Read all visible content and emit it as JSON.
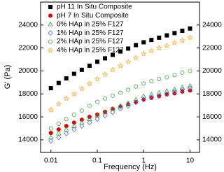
{
  "chart_data": {
    "type": "scatter",
    "xlabel": "Frequency (Hz)",
    "ylabel": "G' (Pa)",
    "xscale": "log",
    "x": [
      0.01,
      0.0147,
      0.0215,
      0.0316,
      0.0464,
      0.0681,
      0.1,
      0.147,
      0.215,
      0.316,
      0.464,
      0.681,
      1,
      1.47,
      2.15,
      3.16,
      4.64,
      6.81,
      10
    ],
    "series": [
      {
        "name": "pH 11 In Situ Composite",
        "color": "#000000",
        "marker": "square",
        "filled": true,
        "values": [
          18500,
          18950,
          19350,
          19750,
          20100,
          20450,
          20800,
          21100,
          21400,
          21700,
          21950,
          22250,
          22500,
          22700,
          22900,
          23100,
          23300,
          23500,
          23700
        ]
      },
      {
        "name": "pH 7 In Situ Composite",
        "color": "#e00000",
        "marker": "circle",
        "filled": true,
        "values": [
          14600,
          14900,
          15200,
          15500,
          15750,
          16000,
          16200,
          16450,
          16700,
          16900,
          17100,
          17300,
          17500,
          17650,
          17800,
          17950,
          18050,
          18200,
          18300
        ]
      },
      {
        "name": "0% HAp in 25% F127",
        "color": "#33aa33",
        "marker": "triangle",
        "filled": false,
        "values": [
          14200,
          14550,
          14900,
          15200,
          15500,
          15800,
          16100,
          16400,
          16700,
          16950,
          17200,
          17500,
          17800,
          17950,
          18100,
          18250,
          18400,
          18550,
          18700
        ]
      },
      {
        "name": "1% HAp in 25% F127",
        "color": "#5566ff",
        "marker": "diamond",
        "filled": false,
        "values": [
          13900,
          14200,
          14550,
          14900,
          15200,
          15500,
          15800,
          16100,
          16400,
          16700,
          16950,
          17250,
          17500,
          17700,
          17850,
          18000,
          18200,
          18350,
          18500
        ]
      },
      {
        "name": "2% HAp in 25% F127",
        "color": "#44aa44",
        "marker": "circle",
        "filled": false,
        "values": [
          15000,
          15400,
          15800,
          16200,
          16550,
          16950,
          17300,
          17600,
          17850,
          18100,
          18350,
          18650,
          18900,
          19100,
          19300,
          19450,
          19650,
          19850,
          20000
        ]
      },
      {
        "name": "4% HAp in 25% F127",
        "color": "#ffaa33",
        "marker": "star",
        "filled": false,
        "values": [
          16600,
          17100,
          17600,
          18000,
          18450,
          18900,
          19300,
          19700,
          20100,
          20450,
          20800,
          21150,
          21500,
          21750,
          22000,
          22200,
          22450,
          22650,
          22900
        ]
      }
    ],
    "xlim": [
      0.006,
      16
    ],
    "xticks": [
      0.01,
      0.1,
      1,
      10
    ],
    "ylim": [
      12900,
      26000
    ],
    "yticks": [
      14000,
      16000,
      18000,
      20000,
      22000,
      24000
    ],
    "legend": "upper-left"
  }
}
